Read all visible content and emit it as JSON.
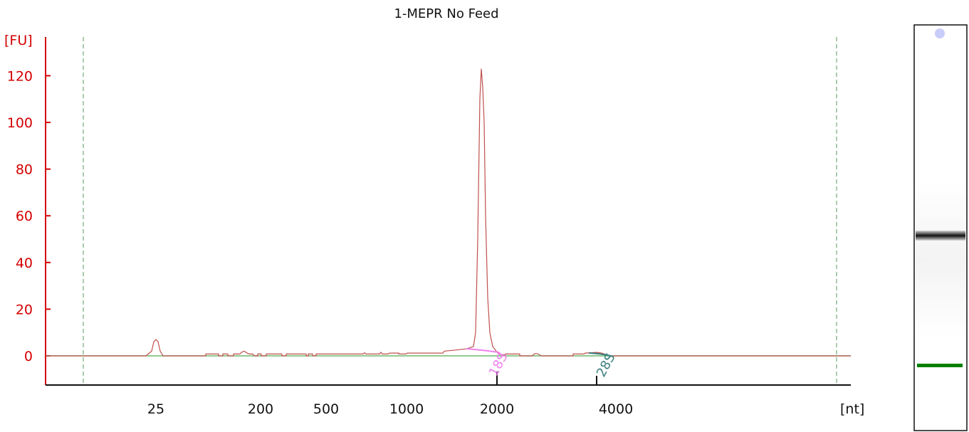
{
  "chart_data": {
    "type": "line",
    "title": "1-MEPR No Feed",
    "ylabel": "[FU]",
    "xlabel": "[nt]",
    "ylim": [
      -12,
      136
    ],
    "yticks": [
      0,
      20,
      40,
      60,
      80,
      100,
      120
    ],
    "xticks": [
      "25",
      "200",
      "500",
      "1000",
      "2000",
      "4000"
    ],
    "x_scale": "categorical-nonlinear",
    "colors": {
      "trace": "#c0504d",
      "axis": "#d40000",
      "baseline": "#6ab86a",
      "marker_line": "#5a9a5a",
      "label_18s": "#ee82ee",
      "label_28s": "#3a7f7f",
      "gel_band_upper": "#111111",
      "gel_band_lower": "#008000",
      "gel_marker_dot": "#c8ccf8"
    },
    "peaks": [
      {
        "x_label": "25",
        "fu": 7
      },
      {
        "x_label": "18S (~1900 nt)",
        "fu": 123
      }
    ],
    "annotations": [
      {
        "text": "18S",
        "color_key": "label_18s"
      },
      {
        "text": "28S",
        "color_key": "label_28s"
      }
    ],
    "gel_lane": {
      "bands": [
        "upper-marker",
        "main-band",
        "lower-marker"
      ]
    }
  }
}
